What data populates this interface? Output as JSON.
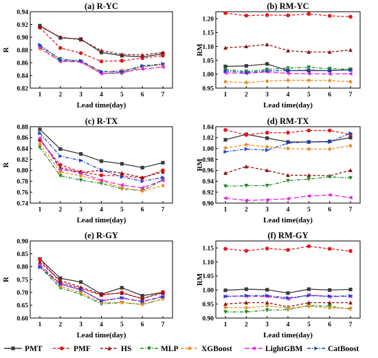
{
  "legend": {
    "entries": [
      {
        "name": "PMT",
        "color": "#3a3a3a",
        "dash": "solid",
        "marker": "square"
      },
      {
        "name": "PMF",
        "color": "#e8141b",
        "dash": "dash",
        "marker": "circle"
      },
      {
        "name": "HS",
        "color": "#8b1414",
        "dash": "dash",
        "marker": "triangle"
      },
      {
        "name": "MLP",
        "color": "#1f8a1f",
        "dash": "dashdot",
        "marker": "triangle-down"
      },
      {
        "name": "XGBoost",
        "color": "#f28a1f",
        "dash": "dash",
        "marker": "diamond"
      },
      {
        "name": "LightGBM",
        "color": "#e020e0",
        "dash": "longdash",
        "marker": "triangle-left"
      },
      {
        "name": "CatBoost",
        "color": "#1a3fd0",
        "dash": "dashdot",
        "marker": "triangle-right"
      }
    ]
  },
  "chart_data": [
    {
      "type": "line",
      "title": "(a) R-YC",
      "xlabel": "Lead time(day)",
      "ylabel": "R",
      "x": [
        1,
        2,
        3,
        4,
        5,
        6,
        7
      ],
      "ylim": [
        0.82,
        0.94
      ],
      "yticks": [
        "0.82",
        "0.84",
        "0.86",
        "0.88",
        "0.90",
        "0.92",
        "0.94"
      ],
      "series": [
        {
          "name": "PMT",
          "values": [
            0.918,
            0.899,
            0.897,
            0.876,
            0.871,
            0.869,
            0.874
          ]
        },
        {
          "name": "PMF",
          "values": [
            0.915,
            0.883,
            0.875,
            0.862,
            0.863,
            0.867,
            0.871
          ]
        },
        {
          "name": "HS",
          "values": [
            0.917,
            0.9,
            0.896,
            0.879,
            0.873,
            0.872,
            0.876
          ]
        },
        {
          "name": "MLP",
          "values": [
            0.886,
            0.866,
            0.862,
            0.843,
            0.843,
            0.854,
            0.857
          ]
        },
        {
          "name": "XGBoost",
          "values": [
            0.882,
            0.862,
            0.862,
            0.845,
            0.848,
            0.853,
            0.857
          ]
        },
        {
          "name": "LightGBM",
          "values": [
            0.884,
            0.862,
            0.861,
            0.843,
            0.845,
            0.85,
            0.853
          ]
        },
        {
          "name": "CatBoost",
          "values": [
            0.888,
            0.864,
            0.863,
            0.846,
            0.846,
            0.855,
            0.858
          ]
        }
      ]
    },
    {
      "type": "line",
      "title": "(b) RM-YC",
      "xlabel": "Lead time(day)",
      "ylabel": "RM",
      "x": [
        1,
        2,
        3,
        4,
        5,
        6,
        7
      ],
      "ylim": [
        0.95,
        1.225
      ],
      "yticks": [
        "0.95",
        "1.00",
        "1.05",
        "1.10",
        "1.15",
        "1.20"
      ],
      "series": [
        {
          "name": "PMT",
          "values": [
            1.028,
            1.03,
            1.037,
            1.013,
            1.013,
            1.013,
            1.016
          ]
        },
        {
          "name": "PMF",
          "values": [
            1.22,
            1.211,
            1.213,
            1.212,
            1.217,
            1.21,
            1.207
          ]
        },
        {
          "name": "HS",
          "values": [
            1.095,
            1.1,
            1.107,
            1.085,
            1.08,
            1.08,
            1.087
          ]
        },
        {
          "name": "MLP",
          "values": [
            1.017,
            1.01,
            1.017,
            1.022,
            1.025,
            1.02,
            1.018
          ]
        },
        {
          "name": "XGBoost",
          "values": [
            0.973,
            0.97,
            0.975,
            0.978,
            0.978,
            0.977,
            0.973
          ]
        },
        {
          "name": "LightGBM",
          "values": [
            1.005,
            1.003,
            1.008,
            1.003,
            1.002,
            1.001,
            1.002
          ]
        },
        {
          "name": "CatBoost",
          "values": [
            1.012,
            1.006,
            1.012,
            1.013,
            1.015,
            1.013,
            1.015
          ]
        }
      ]
    },
    {
      "type": "line",
      "title": "(c) R-TX",
      "xlabel": "Lead time(day)",
      "ylabel": "R",
      "x": [
        1,
        2,
        3,
        4,
        5,
        6,
        7
      ],
      "ylim": [
        0.74,
        0.88
      ],
      "yticks": [
        "0.74",
        "0.76",
        "0.78",
        "0.80",
        "0.82",
        "0.84",
        "0.86",
        "0.88"
      ],
      "series": [
        {
          "name": "PMT",
          "values": [
            0.875,
            0.839,
            0.83,
            0.817,
            0.812,
            0.805,
            0.814
          ]
        },
        {
          "name": "PMF",
          "values": [
            0.855,
            0.81,
            0.797,
            0.791,
            0.79,
            0.786,
            0.8
          ]
        },
        {
          "name": "HS",
          "values": [
            0.858,
            0.805,
            0.796,
            0.8,
            0.795,
            0.787,
            0.797
          ]
        },
        {
          "name": "MLP",
          "values": [
            0.842,
            0.79,
            0.782,
            0.776,
            0.766,
            0.763,
            0.782
          ]
        },
        {
          "name": "XGBoost",
          "values": [
            0.848,
            0.797,
            0.79,
            0.78,
            0.768,
            0.762,
            0.772
          ]
        },
        {
          "name": "LightGBM",
          "values": [
            0.859,
            0.802,
            0.795,
            0.782,
            0.773,
            0.768,
            0.782
          ]
        },
        {
          "name": "CatBoost",
          "values": [
            0.868,
            0.826,
            0.818,
            0.801,
            0.788,
            0.78,
            0.787
          ]
        }
      ]
    },
    {
      "type": "line",
      "title": "(d) RM-TX",
      "xlabel": "Lead time(day)",
      "ylabel": "RM",
      "x": [
        1,
        2,
        3,
        4,
        5,
        6,
        7
      ],
      "ylim": [
        0.9,
        1.04
      ],
      "yticks": [
        "0.90",
        "0.92",
        "0.94",
        "0.96",
        "0.98",
        "1.00",
        "1.02",
        "1.04"
      ],
      "series": [
        {
          "name": "PMT",
          "values": [
            1.016,
            1.026,
            1.019,
            1.012,
            1.012,
            1.013,
            1.02
          ]
        },
        {
          "name": "PMF",
          "values": [
            1.034,
            1.025,
            1.029,
            1.029,
            1.033,
            1.033,
            1.026
          ]
        },
        {
          "name": "HS",
          "values": [
            0.955,
            0.967,
            0.96,
            0.951,
            0.951,
            0.95,
            0.96
          ]
        },
        {
          "name": "MLP",
          "values": [
            0.931,
            0.932,
            0.932,
            0.941,
            0.944,
            0.948,
            0.946
          ]
        },
        {
          "name": "XGBoost",
          "values": [
            1.001,
            1.007,
            1.003,
            1.0,
            0.999,
            0.999,
            1.005
          ]
        },
        {
          "name": "LightGBM",
          "values": [
            0.909,
            0.905,
            0.906,
            0.908,
            0.913,
            0.915,
            0.91
          ]
        },
        {
          "name": "CatBoost",
          "values": [
            0.994,
            0.999,
            0.997,
            1.01,
            1.012,
            1.012,
            1.028
          ]
        }
      ]
    },
    {
      "type": "line",
      "title": "(e) R-GY",
      "xlabel": "Lead time(day)",
      "ylabel": "R",
      "x": [
        1,
        2,
        3,
        4,
        5,
        6,
        7
      ],
      "ylim": [
        0.6,
        0.9
      ],
      "yticks": [
        "0.60",
        "0.65",
        "0.70",
        "0.75",
        "0.80",
        "0.85",
        "0.90"
      ],
      "series": [
        {
          "name": "PMT",
          "values": [
            0.83,
            0.755,
            0.74,
            0.693,
            0.718,
            0.687,
            0.7
          ]
        },
        {
          "name": "PMF",
          "values": [
            0.828,
            0.739,
            0.715,
            0.689,
            0.699,
            0.675,
            0.701
          ]
        },
        {
          "name": "HS",
          "values": [
            0.818,
            0.746,
            0.72,
            0.692,
            0.697,
            0.676,
            0.698
          ]
        },
        {
          "name": "MLP",
          "values": [
            0.8,
            0.717,
            0.693,
            0.655,
            0.66,
            0.653,
            0.674
          ]
        },
        {
          "name": "XGBoost",
          "values": [
            0.804,
            0.724,
            0.699,
            0.661,
            0.661,
            0.653,
            0.675
          ]
        },
        {
          "name": "LightGBM",
          "values": [
            0.808,
            0.732,
            0.71,
            0.668,
            0.678,
            0.664,
            0.685
          ]
        },
        {
          "name": "CatBoost",
          "values": [
            0.798,
            0.733,
            0.71,
            0.667,
            0.679,
            0.664,
            0.683
          ]
        }
      ]
    },
    {
      "type": "line",
      "title": "(f) RM-GY",
      "xlabel": "Lead time(day)",
      "ylabel": "RM",
      "x": [
        1,
        2,
        3,
        4,
        5,
        6,
        7
      ],
      "ylim": [
        0.9,
        1.175
      ],
      "yticks": [
        "0.90",
        "0.95",
        "1.00",
        "1.05",
        "1.10",
        "1.15"
      ],
      "series": [
        {
          "name": "PMT",
          "values": [
            0.999,
            1.003,
            1.001,
            0.989,
            1.003,
            1.0,
            1.002
          ]
        },
        {
          "name": "PMF",
          "values": [
            1.147,
            1.14,
            1.148,
            1.143,
            1.156,
            1.147,
            1.139
          ]
        },
        {
          "name": "HS",
          "values": [
            0.95,
            0.955,
            0.955,
            0.94,
            0.955,
            0.955,
            0.955
          ]
        },
        {
          "name": "MLP",
          "values": [
            0.922,
            0.922,
            0.928,
            0.93,
            0.945,
            0.942,
            0.932
          ]
        },
        {
          "name": "XGBoost",
          "values": [
            0.938,
            0.937,
            0.943,
            0.936,
            0.942,
            0.936,
            0.935
          ]
        },
        {
          "name": "LightGBM",
          "values": [
            0.978,
            0.978,
            0.977,
            0.968,
            0.983,
            0.976,
            0.978
          ]
        },
        {
          "name": "CatBoost",
          "values": [
            0.977,
            0.98,
            0.98,
            0.972,
            0.98,
            0.978,
            0.979
          ]
        }
      ]
    }
  ]
}
